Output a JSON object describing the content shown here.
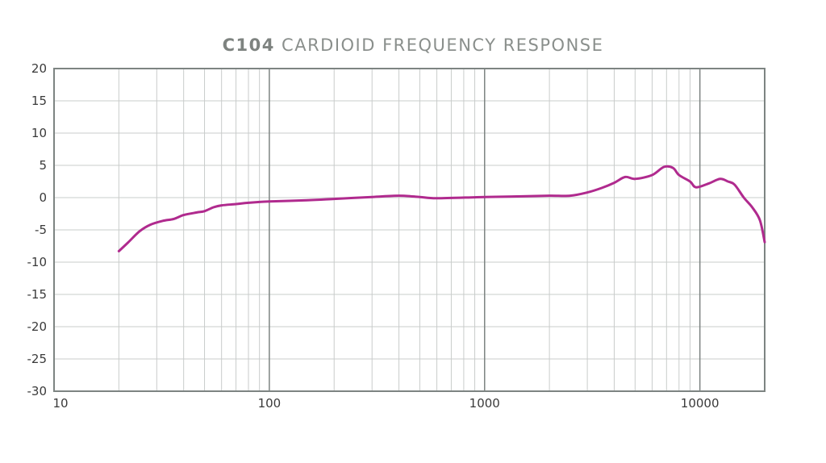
{
  "chart_data": {
    "type": "line",
    "title_bold": "C104",
    "title_rest": " CARDIOID FREQUENCY RESPONSE",
    "xscale": "log",
    "xlim": [
      10,
      20000
    ],
    "ylim": [
      -30,
      20
    ],
    "xticks": [
      10,
      100,
      1000,
      10000
    ],
    "yticks": [
      20,
      15,
      10,
      5,
      0,
      -5,
      -10,
      -15,
      -20,
      -25,
      -30
    ],
    "grid": true,
    "colors": {
      "line": "#b02a8e",
      "grid": "#c9cccb",
      "major_grid": "#7d8482",
      "frame": "#7d8482"
    },
    "series": [
      {
        "x": [
          20,
          22,
          25,
          28,
          32,
          36,
          40,
          46,
          50,
          55,
          60,
          70,
          80,
          100,
          150,
          200,
          300,
          400,
          500,
          600,
          1000,
          1500,
          2000,
          2500,
          3000,
          3500,
          4000,
          4500,
          5000,
          6000,
          6800,
          7500,
          8000,
          9000,
          9600,
          11000,
          12400,
          13500,
          14500,
          16000,
          17500,
          19000,
          20000
        ],
        "y": [
          -8.3,
          -7,
          -5.2,
          -4.2,
          -3.6,
          -3.3,
          -2.7,
          -2.3,
          -2.1,
          -1.5,
          -1.2,
          -1.0,
          -0.8,
          -0.6,
          -0.4,
          -0.2,
          0.1,
          0.3,
          0.1,
          -0.1,
          0.1,
          0.2,
          0.3,
          0.3,
          0.8,
          1.5,
          2.3,
          3.2,
          2.9,
          3.5,
          4.75,
          4.6,
          3.5,
          2.5,
          1.6,
          2.2,
          2.9,
          2.5,
          2.0,
          0.0,
          -1.5,
          -3.5,
          -6.9
        ]
      }
    ]
  }
}
